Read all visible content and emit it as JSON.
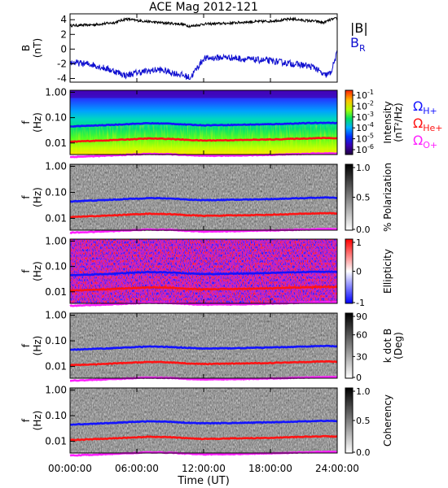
{
  "title": "ACE Mag 2012-121",
  "time_axis": {
    "label": "Time (UT)",
    "ticks": [
      "00:00:00",
      "06:00:00",
      "12:00:00",
      "18:00:00",
      "24:00:00"
    ],
    "tick_hours": [
      0,
      6,
      12,
      18,
      24
    ]
  },
  "colors": {
    "b_total": "#000000",
    "b_r": "#1010d0",
    "h_plus": "#1414ff",
    "he_plus": "#ff1414",
    "o_plus": "#ff20ff"
  },
  "labels": {
    "b_total": "|B|",
    "b_r_main": "B",
    "b_r_sub": "R",
    "omega": "Ω",
    "h_sub": "H+",
    "he_sub": "He+",
    "o_sub": "O+",
    "b_ylabel": "B",
    "b_yunit": "(nT)",
    "f_ylabel": "f",
    "f_yunit": "(Hz)"
  },
  "chart_data": [
    {
      "type": "line",
      "panel": "B",
      "ylim": [
        -4.5,
        4.8
      ],
      "yticks": [
        "4",
        "2",
        "0",
        "-2",
        "-4"
      ],
      "ytick_values": [
        4,
        2,
        0,
        -2,
        -4
      ],
      "x_hours": [
        0,
        2,
        4,
        5,
        6,
        8,
        10,
        10.8,
        12,
        14,
        16,
        18,
        20,
        21,
        22,
        22.8,
        23.4,
        24
      ],
      "series": [
        {
          "name": "|B|",
          "values": [
            3.2,
            3.3,
            3.6,
            4.1,
            3.9,
            3.6,
            3.4,
            3.1,
            3.4,
            3.5,
            3.7,
            3.8,
            4.1,
            3.9,
            3.8,
            3.6,
            4.0,
            4.2
          ]
        },
        {
          "name": "BR",
          "values": [
            -1.8,
            -2.1,
            -3.0,
            -3.6,
            -3.2,
            -2.8,
            -3.5,
            -3.9,
            -1.3,
            -1.1,
            -1.4,
            -1.6,
            -2.0,
            -2.2,
            -2.5,
            -3.6,
            -3.3,
            -0.5
          ]
        }
      ]
    },
    {
      "type": "heatmap",
      "panel": "intensity",
      "yticks": [
        "1.00",
        "0.10",
        "0.01"
      ],
      "ytick_values": [
        1.0,
        0.1,
        0.01
      ],
      "ylim": [
        0.0035,
        1.2
      ],
      "colorbar_ticks": [
        "10",
        "10",
        "10",
        "10",
        "10",
        "10"
      ],
      "colorbar_exponents": [
        "-1",
        "-2",
        "-3",
        "-4",
        "-5",
        "-6"
      ],
      "colorbar_label": "Intensity",
      "colorbar_unit": "(nT²/Hz)"
    },
    {
      "type": "heatmap",
      "panel": "polarization",
      "yticks": [
        "1.00",
        "0.10",
        "0.01"
      ],
      "ytick_values": [
        1.0,
        0.1,
        0.01
      ],
      "colorbar_ticks": [
        "1.0",
        "0.5",
        "0.0"
      ],
      "colorbar_range": [
        0,
        1
      ],
      "colorbar_label": "% Polarization"
    },
    {
      "type": "heatmap",
      "panel": "ellipticity",
      "yticks": [
        "1.00",
        "0.10",
        "0.01"
      ],
      "ytick_values": [
        1.0,
        0.1,
        0.01
      ],
      "colorbar_ticks": [
        "1",
        "0",
        "-1"
      ],
      "colorbar_range": [
        -1,
        1
      ],
      "colorbar_label": "Ellipticity"
    },
    {
      "type": "heatmap",
      "panel": "kdotb",
      "yticks": [
        "1.00",
        "0.10",
        "0.01"
      ],
      "ytick_values": [
        1.0,
        0.1,
        0.01
      ],
      "colorbar_ticks": [
        "90",
        "60",
        "30",
        "0"
      ],
      "colorbar_range": [
        0,
        90
      ],
      "colorbar_label": "k dot B",
      "colorbar_unit": "(Deg)"
    },
    {
      "type": "heatmap",
      "panel": "coherency",
      "yticks": [
        "1.00",
        "0.10",
        "0.01"
      ],
      "ytick_values": [
        1.0,
        0.1,
        0.01
      ],
      "colorbar_ticks": [
        "1.0",
        "0.5",
        "0.0"
      ],
      "colorbar_range": [
        0,
        1
      ],
      "colorbar_label": "Coherency"
    }
  ],
  "gyrofrequencies": {
    "x_hours": [
      0,
      3,
      5,
      7,
      9,
      10.5,
      12,
      15,
      18,
      21,
      23,
      24
    ],
    "h_plus_hz": [
      0.045,
      0.05,
      0.055,
      0.06,
      0.058,
      0.053,
      0.05,
      0.052,
      0.055,
      0.06,
      0.063,
      0.061
    ],
    "he_plus_hz": [
      0.0112,
      0.0125,
      0.0137,
      0.015,
      0.0145,
      0.0132,
      0.0125,
      0.013,
      0.0137,
      0.015,
      0.0158,
      0.0153
    ],
    "o_plus_hz": [
      0.0028,
      0.0031,
      0.0034,
      0.0037,
      0.0036,
      0.0033,
      0.0031,
      0.0032,
      0.0034,
      0.0037,
      0.0039,
      0.0038
    ]
  }
}
